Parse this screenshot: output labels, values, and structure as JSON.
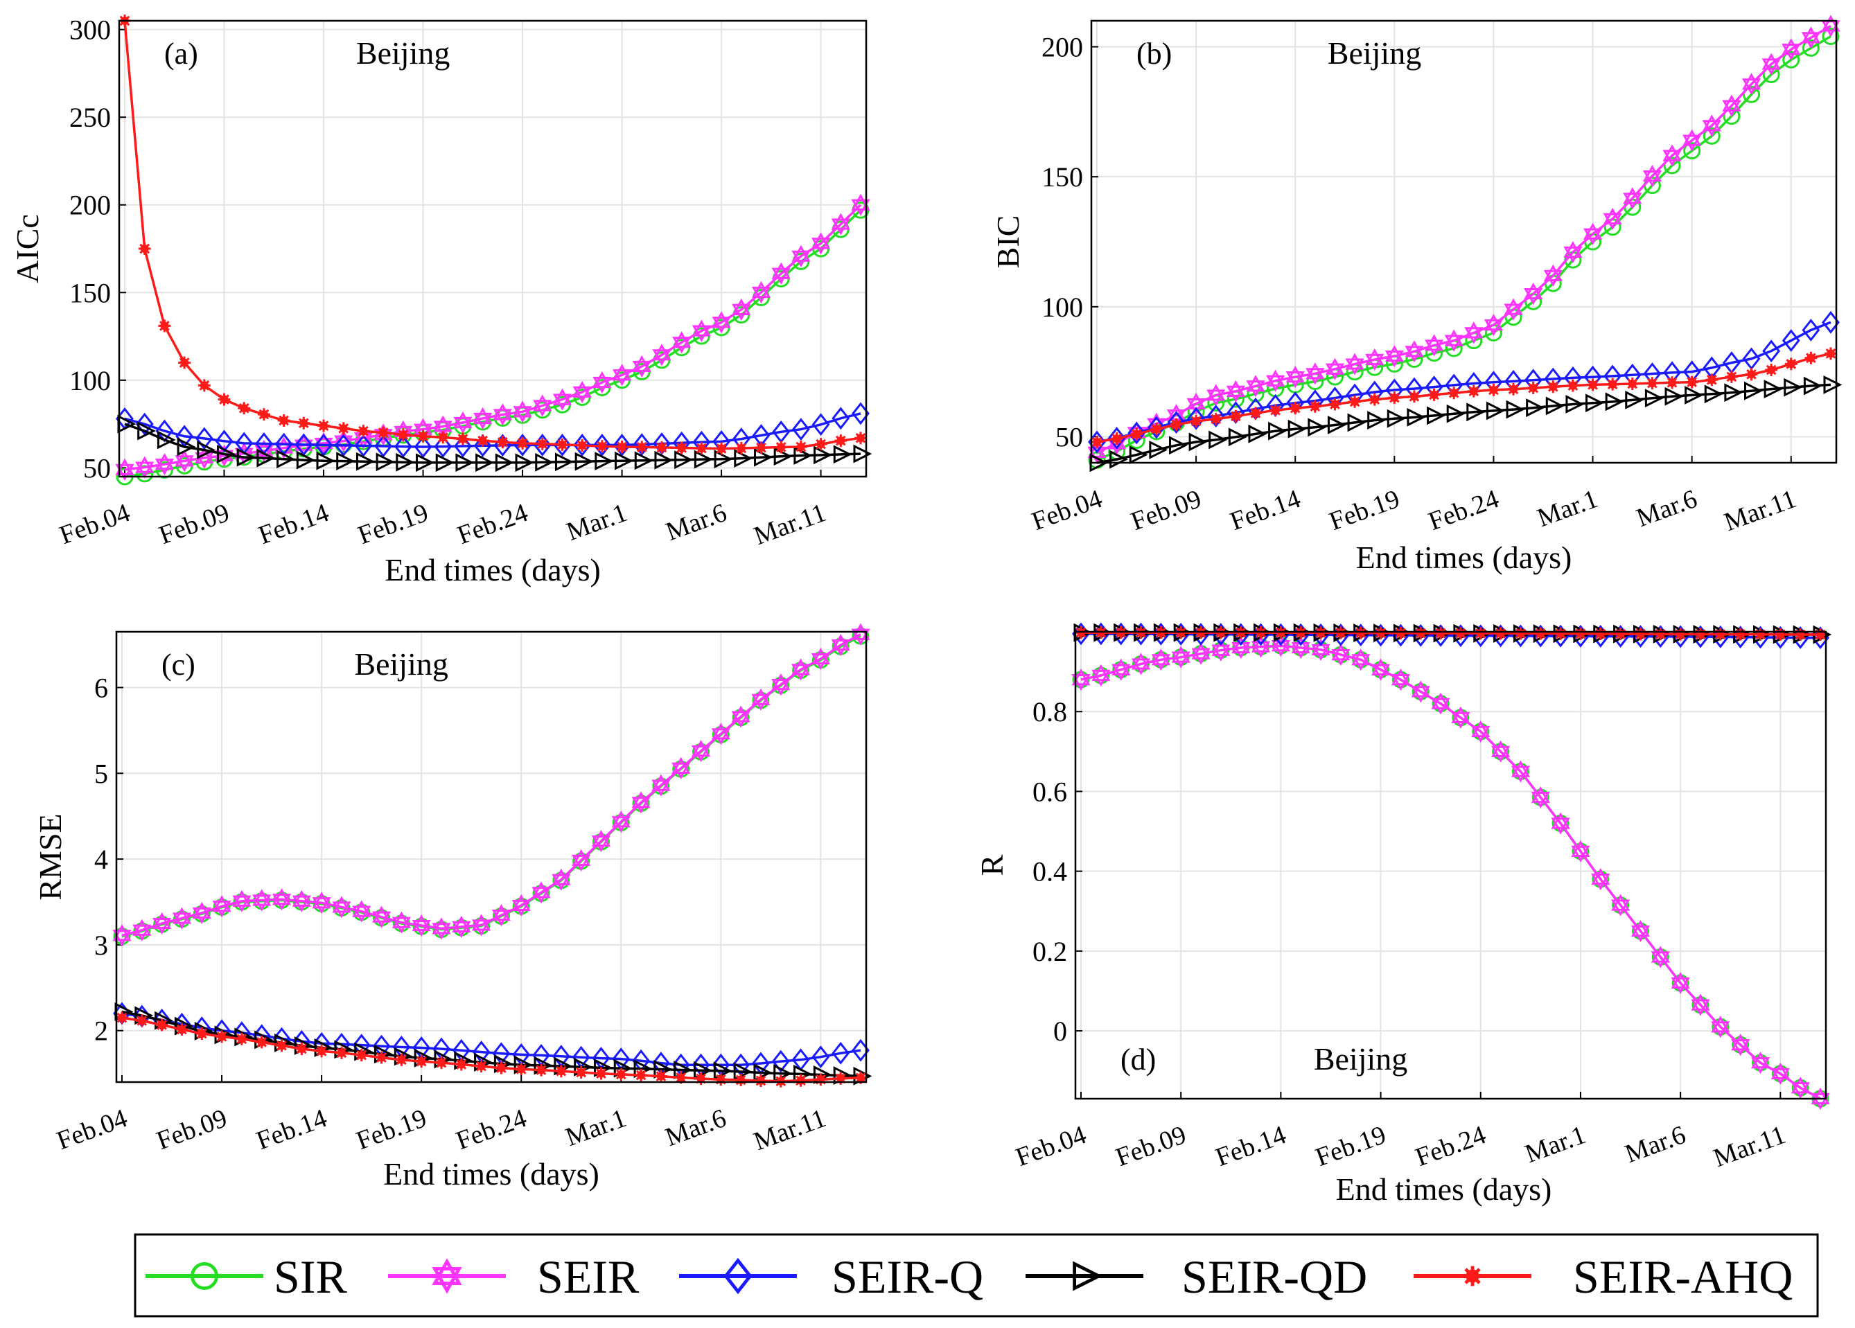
{
  "figure": {
    "legend": [
      {
        "name": "SIR",
        "color": "#22dd22",
        "marker": "circle"
      },
      {
        "name": "SEIR",
        "color": "#ff33ff",
        "marker": "star"
      },
      {
        "name": "SEIR-Q",
        "color": "#1a1aff",
        "marker": "diamond"
      },
      {
        "name": "SEIR-QD",
        "color": "#000000",
        "marker": "triangle"
      },
      {
        "name": "SEIR-AHQ",
        "color": "#ff1a1a",
        "marker": "asterisk"
      }
    ]
  },
  "chart_data": [
    {
      "panel": "(a)",
      "city": "Beijing",
      "type": "line",
      "xlabel": "End times (days)",
      "ylabel": "AICc",
      "categories": [
        "Feb.04",
        "Feb.09",
        "Feb.14",
        "Feb.19",
        "Feb.24",
        "Mar.1",
        "Mar.6",
        "Mar.11"
      ],
      "x_range": [
        0,
        37
      ],
      "ylim": [
        45,
        305
      ],
      "yticks": [
        50,
        100,
        150,
        200,
        250,
        300
      ],
      "series": [
        {
          "name": "SIR",
          "points": [
            [
              0,
              45
            ],
            [
              5,
              55
            ],
            [
              10,
              62
            ],
            [
              15,
              70
            ],
            [
              20,
              80
            ],
            [
              22,
              86
            ],
            [
              25,
              100
            ],
            [
              30,
              130
            ],
            [
              35,
              175
            ],
            [
              37,
              197
            ]
          ]
        },
        {
          "name": "SEIR",
          "points": [
            [
              0,
              49
            ],
            [
              5,
              57
            ],
            [
              10,
              64
            ],
            [
              15,
              72
            ],
            [
              20,
              82
            ],
            [
              22,
              89
            ],
            [
              25,
              103
            ],
            [
              30,
              133
            ],
            [
              35,
              178
            ],
            [
              37,
              200
            ]
          ]
        },
        {
          "name": "SEIR-Q",
          "points": [
            [
              0,
              78
            ],
            [
              3,
              68
            ],
            [
              6,
              64
            ],
            [
              10,
              63
            ],
            [
              15,
              62
            ],
            [
              20,
              63
            ],
            [
              25,
              63
            ],
            [
              30,
              65
            ],
            [
              34,
              72
            ],
            [
              37,
              81
            ]
          ]
        },
        {
          "name": "SEIR-QD",
          "points": [
            [
              0,
              75
            ],
            [
              3,
              62
            ],
            [
              6,
              56
            ],
            [
              10,
              54
            ],
            [
              15,
              53
            ],
            [
              20,
              53
            ],
            [
              25,
              54
            ],
            [
              30,
              55
            ],
            [
              34,
              57
            ],
            [
              37,
              58
            ]
          ]
        },
        {
          "name": "SEIR-AHQ",
          "points": [
            [
              0,
              305
            ],
            [
              1,
              175
            ],
            [
              2,
              131
            ],
            [
              3,
              110
            ],
            [
              4,
              97
            ],
            [
              5,
              89
            ],
            [
              6,
              84
            ],
            [
              8,
              77
            ],
            [
              10,
              74
            ],
            [
              12,
              71
            ],
            [
              15,
              68
            ],
            [
              20,
              64
            ],
            [
              25,
              62
            ],
            [
              30,
              61
            ],
            [
              34,
              62
            ],
            [
              37,
              67
            ]
          ]
        }
      ]
    },
    {
      "panel": "(b)",
      "city": "Beijing",
      "type": "line",
      "xlabel": "End times (days)",
      "ylabel": "BIC",
      "categories": [
        "Feb.04",
        "Feb.09",
        "Feb.14",
        "Feb.19",
        "Feb.24",
        "Mar.1",
        "Mar.6",
        "Mar.11"
      ],
      "x_range": [
        0,
        37
      ],
      "ylim": [
        40,
        210
      ],
      "yticks": [
        50,
        100,
        150,
        200
      ],
      "series": [
        {
          "name": "SIR",
          "points": [
            [
              0,
              41
            ],
            [
              3,
              52
            ],
            [
              6,
              63
            ],
            [
              10,
              70
            ],
            [
              15,
              78
            ],
            [
              18,
              84
            ],
            [
              20,
              90
            ],
            [
              22,
              102
            ],
            [
              25,
              125
            ],
            [
              30,
              160
            ],
            [
              35,
              195
            ],
            [
              37,
              204
            ]
          ]
        },
        {
          "name": "SEIR",
          "points": [
            [
              0,
              44
            ],
            [
              3,
              55
            ],
            [
              6,
              66
            ],
            [
              10,
              73
            ],
            [
              15,
              81
            ],
            [
              18,
              87
            ],
            [
              20,
              93
            ],
            [
              22,
              105
            ],
            [
              25,
              128
            ],
            [
              30,
              164
            ],
            [
              35,
              199
            ],
            [
              37,
              208
            ]
          ]
        },
        {
          "name": "SEIR-Q",
          "points": [
            [
              0,
              48
            ],
            [
              5,
              57
            ],
            [
              10,
              63
            ],
            [
              15,
              68
            ],
            [
              20,
              71
            ],
            [
              25,
              73
            ],
            [
              30,
              75
            ],
            [
              33,
              80
            ],
            [
              37,
              94
            ]
          ]
        },
        {
          "name": "SEIR-QD",
          "points": [
            [
              0,
              40
            ],
            [
              5,
              48
            ],
            [
              10,
              53
            ],
            [
              15,
              57
            ],
            [
              20,
              60
            ],
            [
              25,
              63
            ],
            [
              30,
              66
            ],
            [
              37,
              70
            ]
          ]
        },
        {
          "name": "SEIR-AHQ",
          "points": [
            [
              0,
              48
            ],
            [
              5,
              56
            ],
            [
              10,
              61
            ],
            [
              15,
              65
            ],
            [
              20,
              68
            ],
            [
              25,
              70
            ],
            [
              30,
              71
            ],
            [
              33,
              74
            ],
            [
              37,
              82
            ]
          ]
        }
      ]
    },
    {
      "panel": "(c)",
      "city": "Beijing",
      "type": "line",
      "xlabel": "End times (days)",
      "ylabel": "RMSE",
      "categories": [
        "Feb.04",
        "Feb.09",
        "Feb.14",
        "Feb.19",
        "Feb.24",
        "Mar.1",
        "Mar.6",
        "Mar.11"
      ],
      "x_range": [
        0,
        37
      ],
      "ylim": [
        1.4,
        6.65
      ],
      "yticks": [
        2,
        3,
        4,
        5,
        6
      ],
      "series": [
        {
          "name": "SIR",
          "points": [
            [
              0,
              3.1
            ],
            [
              3,
              3.3
            ],
            [
              6,
              3.5
            ],
            [
              8,
              3.52
            ],
            [
              10,
              3.48
            ],
            [
              12,
              3.38
            ],
            [
              14,
              3.25
            ],
            [
              16,
              3.18
            ],
            [
              18,
              3.22
            ],
            [
              20,
              3.45
            ],
            [
              22,
              3.75
            ],
            [
              24,
              4.2
            ],
            [
              26,
              4.65
            ],
            [
              28,
              5.05
            ],
            [
              30,
              5.45
            ],
            [
              32,
              5.85
            ],
            [
              34,
              6.2
            ],
            [
              37,
              6.6
            ]
          ]
        },
        {
          "name": "SEIR",
          "points": [
            [
              0,
              3.11
            ],
            [
              3,
              3.31
            ],
            [
              6,
              3.51
            ],
            [
              8,
              3.53
            ],
            [
              10,
              3.49
            ],
            [
              12,
              3.39
            ],
            [
              14,
              3.26
            ],
            [
              16,
              3.19
            ],
            [
              18,
              3.23
            ],
            [
              20,
              3.46
            ],
            [
              22,
              3.76
            ],
            [
              24,
              4.21
            ],
            [
              26,
              4.66
            ],
            [
              28,
              5.06
            ],
            [
              30,
              5.46
            ],
            [
              32,
              5.86
            ],
            [
              34,
              6.21
            ],
            [
              37,
              6.62
            ]
          ]
        },
        {
          "name": "SEIR-Q",
          "points": [
            [
              0,
              2.2
            ],
            [
              5,
              2.0
            ],
            [
              10,
              1.85
            ],
            [
              15,
              1.8
            ],
            [
              20,
              1.72
            ],
            [
              25,
              1.67
            ],
            [
              28,
              1.6
            ],
            [
              31,
              1.6
            ],
            [
              34,
              1.66
            ],
            [
              37,
              1.77
            ]
          ]
        },
        {
          "name": "SEIR-QD",
          "points": [
            [
              0,
              2.22
            ],
            [
              5,
              1.95
            ],
            [
              10,
              1.8
            ],
            [
              15,
              1.68
            ],
            [
              20,
              1.6
            ],
            [
              25,
              1.56
            ],
            [
              30,
              1.53
            ],
            [
              33,
              1.5
            ],
            [
              37,
              1.47
            ]
          ]
        },
        {
          "name": "SEIR-AHQ",
          "points": [
            [
              0,
              2.15
            ],
            [
              5,
              1.93
            ],
            [
              10,
              1.76
            ],
            [
              15,
              1.64
            ],
            [
              20,
              1.55
            ],
            [
              25,
              1.49
            ],
            [
              30,
              1.43
            ],
            [
              33,
              1.41
            ],
            [
              37,
              1.45
            ]
          ]
        }
      ]
    },
    {
      "panel": "(d)",
      "city": "Beijing",
      "type": "line",
      "xlabel": "End times (days)",
      "ylabel": "R",
      "categories": [
        "Feb.04",
        "Feb.09",
        "Feb.14",
        "Feb.19",
        "Feb.24",
        "Mar.1",
        "Mar.6",
        "Mar.11"
      ],
      "x_range": [
        0,
        37
      ],
      "ylim": [
        -0.17,
        1.0
      ],
      "yticks": [
        0,
        0.2,
        0.4,
        0.6,
        0.8
      ],
      "series": [
        {
          "name": "SIR",
          "points": [
            [
              0,
              0.88
            ],
            [
              4,
              0.93
            ],
            [
              8,
              0.96
            ],
            [
              10,
              0.965
            ],
            [
              12,
              0.955
            ],
            [
              14,
              0.93
            ],
            [
              16,
              0.88
            ],
            [
              18,
              0.82
            ],
            [
              20,
              0.75
            ],
            [
              22,
              0.65
            ],
            [
              24,
              0.52
            ],
            [
              26,
              0.38
            ],
            [
              28,
              0.25
            ],
            [
              30,
              0.12
            ],
            [
              32,
              0.01
            ],
            [
              34,
              -0.08
            ],
            [
              37,
              -0.17
            ]
          ]
        },
        {
          "name": "SEIR",
          "points": [
            [
              0,
              0.88
            ],
            [
              4,
              0.93
            ],
            [
              8,
              0.96
            ],
            [
              10,
              0.965
            ],
            [
              12,
              0.955
            ],
            [
              14,
              0.93
            ],
            [
              16,
              0.88
            ],
            [
              18,
              0.82
            ],
            [
              20,
              0.75
            ],
            [
              22,
              0.65
            ],
            [
              24,
              0.52
            ],
            [
              26,
              0.38
            ],
            [
              28,
              0.25
            ],
            [
              30,
              0.12
            ],
            [
              32,
              0.01
            ],
            [
              34,
              -0.08
            ],
            [
              37,
              -0.17
            ]
          ]
        },
        {
          "name": "SEIR-Q",
          "points": [
            [
              0,
              0.995
            ],
            [
              10,
              0.993
            ],
            [
              20,
              0.99
            ],
            [
              30,
              0.988
            ],
            [
              37,
              0.985
            ]
          ]
        },
        {
          "name": "SEIR-QD",
          "points": [
            [
              0,
              0.998
            ],
            [
              10,
              0.998
            ],
            [
              20,
              0.996
            ],
            [
              30,
              0.994
            ],
            [
              37,
              0.993
            ]
          ]
        },
        {
          "name": "SEIR-AHQ",
          "points": [
            [
              0,
              0.998
            ],
            [
              10,
              0.998
            ],
            [
              20,
              0.996
            ],
            [
              30,
              0.994
            ],
            [
              37,
              0.993
            ]
          ]
        }
      ]
    }
  ]
}
